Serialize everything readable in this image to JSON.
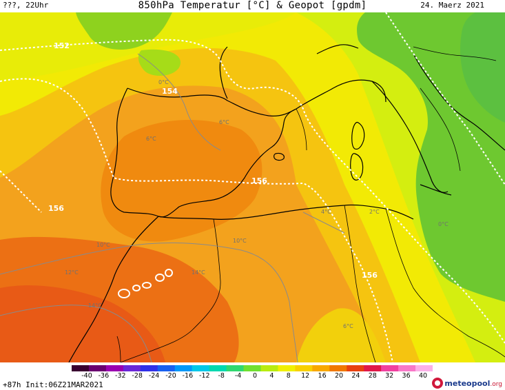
{
  "header": {
    "left_label": "???, 22Uhr",
    "title": "850hPa Temperatur [°C] & Geopot [gpdm]",
    "date": "24. Maerz 2021"
  },
  "map_labels": {
    "geopot": [
      "152",
      "154",
      "156",
      "156",
      "156"
    ],
    "isotherms": [
      "0°C",
      "6°C",
      "6°C",
      "10°C",
      "10°C",
      "12°C",
      "14°C",
      "14°C",
      "4°C",
      "2°C",
      "0°C",
      "6°C"
    ]
  },
  "legend": {
    "ticks": [
      "-40",
      "-36",
      "-32",
      "-28",
      "-24",
      "-20",
      "-16",
      "-12",
      "-8",
      "-4",
      "0",
      "4",
      "8",
      "12",
      "16",
      "20",
      "24",
      "28",
      "32",
      "36",
      "40"
    ],
    "colors": [
      "#3a0030",
      "#6a0070",
      "#9a00b0",
      "#6a28d8",
      "#3030e8",
      "#1860f0",
      "#0098f8",
      "#00c8e8",
      "#00d8b0",
      "#30d870",
      "#70e030",
      "#b8ec10",
      "#f0f000",
      "#f8d000",
      "#f8a800",
      "#f07800",
      "#e84010",
      "#e01848",
      "#f040a0",
      "#f878c8",
      "#fcb0e8"
    ]
  },
  "footer": {
    "init": "+87h Init:06Z21MAR2021",
    "brand_main": "meteopool",
    "brand_tld": ".org"
  }
}
